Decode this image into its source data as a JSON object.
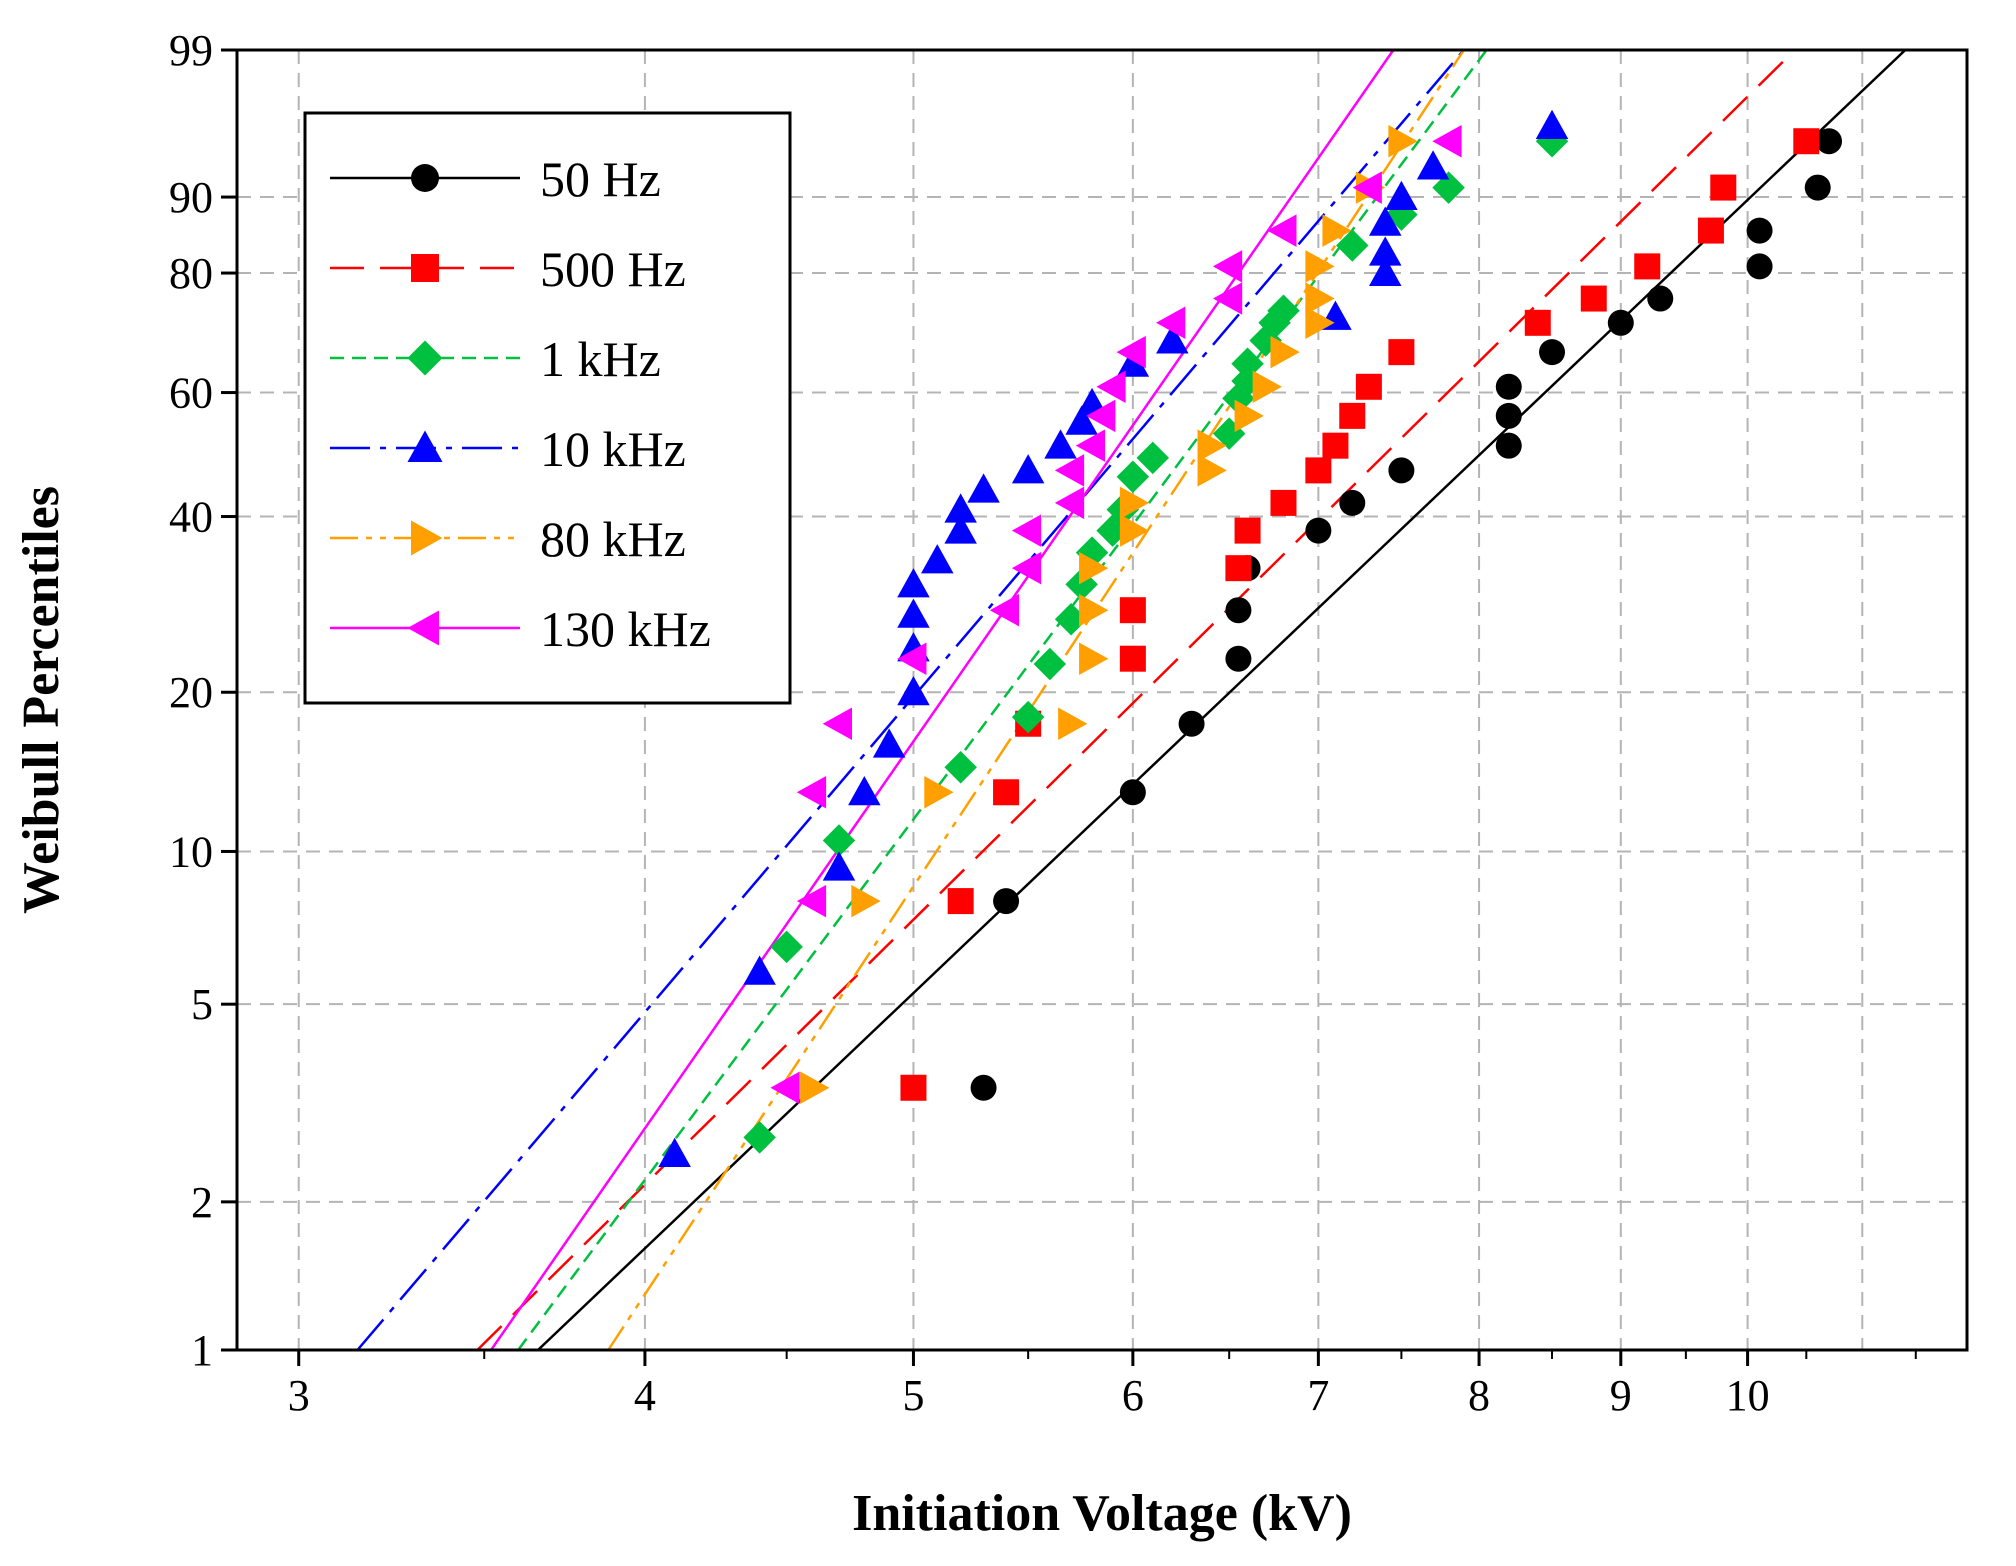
{
  "chart_data": {
    "type": "scatter",
    "title": "",
    "xlabel": "Initiation Voltage (kV)",
    "ylabel": "Weibull Percentiles",
    "xscale": "log",
    "yscale": "weibull",
    "xlim": [
      2.85,
      12.0
    ],
    "ylim": [
      1,
      99
    ],
    "xticks": [
      3,
      4,
      5,
      6,
      7,
      8,
      9,
      10
    ],
    "xtick_labels": [
      "3",
      "4",
      "5",
      "6",
      "7",
      "8",
      "9",
      "10"
    ],
    "yticks": [
      1,
      2,
      5,
      10,
      20,
      40,
      60,
      80,
      90,
      99
    ],
    "ytick_labels": [
      "1",
      "2",
      "5",
      "10",
      "20",
      "40",
      "60",
      "80",
      "90",
      "99"
    ],
    "grid": true,
    "legend_position": "top-left",
    "series": [
      {
        "name": "50 Hz",
        "color": "#000000",
        "marker": "circle",
        "line_style": "solid",
        "fit_line": [
          [
            3.66,
            1
          ],
          [
            11.4,
            99
          ]
        ],
        "points": [
          [
            5.3,
            3.4
          ],
          [
            5.4,
            8
          ],
          [
            6.0,
            13
          ],
          [
            6.3,
            17.5
          ],
          [
            6.55,
            23
          ],
          [
            6.55,
            28
          ],
          [
            6.6,
            33
          ],
          [
            7.0,
            38
          ],
          [
            7.2,
            42
          ],
          [
            7.5,
            47
          ],
          [
            8.2,
            51
          ],
          [
            8.2,
            56
          ],
          [
            8.2,
            61
          ],
          [
            8.5,
            67
          ],
          [
            9.0,
            72
          ],
          [
            9.3,
            76
          ],
          [
            10.1,
            81
          ],
          [
            10.1,
            86
          ],
          [
            10.6,
            91
          ],
          [
            10.7,
            95
          ]
        ]
      },
      {
        "name": "500 Hz",
        "color": "#ff0000",
        "marker": "square",
        "line_style": "long-dash",
        "fit_line": [
          [
            3.48,
            1
          ],
          [
            10.4,
            99
          ]
        ],
        "points": [
          [
            5.0,
            3.4
          ],
          [
            5.2,
            8
          ],
          [
            5.4,
            13
          ],
          [
            5.5,
            17.5
          ],
          [
            6.0,
            23
          ],
          [
            6.0,
            28
          ],
          [
            6.55,
            33
          ],
          [
            6.6,
            38
          ],
          [
            6.8,
            42
          ],
          [
            7.0,
            47
          ],
          [
            7.1,
            51
          ],
          [
            7.2,
            56
          ],
          [
            7.3,
            61
          ],
          [
            7.5,
            67
          ],
          [
            8.4,
            72
          ],
          [
            8.8,
            76
          ],
          [
            9.2,
            81
          ],
          [
            9.7,
            86
          ],
          [
            9.8,
            91
          ],
          [
            10.5,
            95
          ]
        ]
      },
      {
        "name": "1 kHz",
        "color": "#00c040",
        "marker": "diamond",
        "line_style": "short-dash",
        "fit_line": [
          [
            3.6,
            1
          ],
          [
            8.05,
            99
          ]
        ],
        "points": [
          [
            4.4,
            2.7
          ],
          [
            4.5,
            6.5
          ],
          [
            4.7,
            10.5
          ],
          [
            5.2,
            14.5
          ],
          [
            5.5,
            18
          ],
          [
            5.6,
            22.5
          ],
          [
            5.7,
            27
          ],
          [
            5.75,
            31
          ],
          [
            5.8,
            35
          ],
          [
            5.9,
            38
          ],
          [
            5.95,
            41
          ],
          [
            6.0,
            46
          ],
          [
            6.1,
            49
          ],
          [
            6.5,
            53
          ],
          [
            6.55,
            59
          ],
          [
            6.6,
            62
          ],
          [
            6.6,
            65
          ],
          [
            6.7,
            69
          ],
          [
            6.75,
            72
          ],
          [
            6.8,
            74
          ],
          [
            7.2,
            84
          ],
          [
            7.5,
            88
          ],
          [
            7.8,
            91
          ],
          [
            8.5,
            95
          ]
        ]
      },
      {
        "name": "10 kHz",
        "color": "#0000ff",
        "marker": "triangle-up",
        "line_style": "dash-dot",
        "fit_line": [
          [
            3.15,
            1
          ],
          [
            7.9,
            99
          ]
        ],
        "points": [
          [
            4.1,
            2.5
          ],
          [
            4.4,
            5.8
          ],
          [
            4.7,
            9.3
          ],
          [
            4.8,
            13
          ],
          [
            4.9,
            16
          ],
          [
            5.0,
            20
          ],
          [
            5.0,
            24
          ],
          [
            5.0,
            27.5
          ],
          [
            5.0,
            31
          ],
          [
            5.1,
            34
          ],
          [
            5.2,
            38
          ],
          [
            5.2,
            41
          ],
          [
            5.3,
            44
          ],
          [
            5.5,
            47
          ],
          [
            5.65,
            51
          ],
          [
            5.75,
            55
          ],
          [
            5.8,
            58
          ],
          [
            6.0,
            65
          ],
          [
            6.2,
            69
          ],
          [
            7.1,
            73
          ],
          [
            7.4,
            80
          ],
          [
            7.4,
            83
          ],
          [
            7.4,
            87
          ],
          [
            7.5,
            90
          ],
          [
            7.7,
            93
          ],
          [
            8.5,
            96
          ]
        ]
      },
      {
        "name": "80 kHz",
        "color": "#ffa000",
        "marker": "triangle-right",
        "line_style": "dash-dot-dot",
        "fit_line": [
          [
            3.88,
            1
          ],
          [
            7.9,
            99
          ]
        ],
        "points": [
          [
            4.6,
            3.4
          ],
          [
            4.8,
            8
          ],
          [
            5.1,
            13
          ],
          [
            5.7,
            17.5
          ],
          [
            5.8,
            23
          ],
          [
            5.8,
            28
          ],
          [
            5.8,
            33
          ],
          [
            6.0,
            38
          ],
          [
            6.0,
            42
          ],
          [
            6.4,
            47
          ],
          [
            6.4,
            51
          ],
          [
            6.6,
            56
          ],
          [
            6.7,
            61
          ],
          [
            6.8,
            67
          ],
          [
            7.0,
            72
          ],
          [
            7.0,
            76
          ],
          [
            7.0,
            81
          ],
          [
            7.1,
            86
          ],
          [
            7.3,
            91
          ],
          [
            7.5,
            95
          ]
        ]
      },
      {
        "name": "130 kHz",
        "color": "#ff00ff",
        "marker": "triangle-left",
        "line_style": "solid",
        "fit_line": [
          [
            3.52,
            1
          ],
          [
            7.45,
            99
          ]
        ],
        "points": [
          [
            4.5,
            3.4
          ],
          [
            4.6,
            8
          ],
          [
            4.6,
            13
          ],
          [
            4.7,
            17.5
          ],
          [
            5.0,
            23
          ],
          [
            5.4,
            28
          ],
          [
            5.5,
            33
          ],
          [
            5.5,
            38
          ],
          [
            5.7,
            42
          ],
          [
            5.7,
            47
          ],
          [
            5.8,
            51
          ],
          [
            5.85,
            56
          ],
          [
            5.9,
            61
          ],
          [
            6.0,
            67
          ],
          [
            6.2,
            72
          ],
          [
            6.5,
            76
          ],
          [
            6.5,
            81
          ],
          [
            6.8,
            86
          ],
          [
            7.3,
            91
          ],
          [
            7.8,
            95
          ]
        ]
      }
    ]
  }
}
